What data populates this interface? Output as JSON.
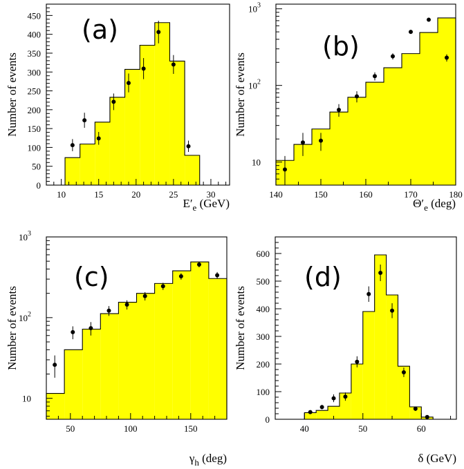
{
  "colors": {
    "fill": "#ffff00",
    "line": "#000000"
  },
  "chart_data": [
    {
      "panel": "(a)",
      "type": "bar",
      "yscale": "linear",
      "xlim": [
        8,
        32.5
      ],
      "ylim": [
        0,
        480
      ],
      "xticks": [
        10,
        15,
        20,
        25,
        30
      ],
      "yticks": [
        0,
        50,
        100,
        150,
        200,
        250,
        300,
        350,
        400,
        450
      ],
      "xlabel": [
        "E",
        "′",
        "e",
        " (GeV)"
      ],
      "ylabel": "Number of events",
      "bins": [
        10.5,
        12.5,
        14.5,
        16.5,
        18.5,
        20.5,
        22.5,
        24.5,
        26.5,
        28.5
      ],
      "histogram": [
        73,
        109,
        167,
        233,
        307,
        371,
        431,
        329,
        79
      ],
      "points": {
        "x": [
          11.5,
          13.1,
          15.0,
          17.0,
          19.0,
          21.0,
          23.0,
          25.0,
          27.0
        ],
        "y": [
          106,
          172,
          124,
          221,
          271,
          309,
          406,
          320,
          103
        ],
        "err": [
          16,
          20,
          17,
          22,
          25,
          28,
          30,
          25,
          15
        ]
      }
    },
    {
      "panel": "(b)",
      "type": "bar",
      "yscale": "log",
      "xlim": [
        140,
        180
      ],
      "ylim": [
        5,
        1150
      ],
      "xticks": [
        140,
        150,
        160,
        170,
        180
      ],
      "yticks": [
        10,
        100,
        1000
      ],
      "ytick_labels": [
        [
          "10",
          ""
        ],
        [
          "10",
          "2"
        ],
        [
          "10",
          "3"
        ]
      ],
      "xlabel": [
        "Θ",
        "′",
        "e",
        " (deg)"
      ],
      "ylabel": "Number of events",
      "bins": [
        140,
        144,
        148,
        152,
        156,
        160,
        164,
        168,
        172,
        176,
        180
      ],
      "histogram": [
        10.5,
        17,
        27,
        45,
        70,
        110,
        170,
        260,
        490,
        760,
        215
      ],
      "points": {
        "x": [
          142,
          146,
          150,
          154,
          158,
          162,
          166,
          170,
          174,
          178
        ],
        "y": [
          8,
          18,
          19,
          48,
          72,
          132,
          240,
          500,
          720,
          230
        ],
        "err": [
          4,
          6,
          5,
          9,
          12,
          16,
          22,
          30,
          40,
          25
        ]
      }
    },
    {
      "panel": "(c)",
      "type": "bar",
      "yscale": "log",
      "xlim": [
        30,
        180
      ],
      "ylim": [
        5.5,
        1000
      ],
      "xticks": [
        50,
        100,
        150
      ],
      "yticks": [
        10,
        100,
        1000
      ],
      "ytick_labels": [
        [
          "10",
          ""
        ],
        [
          "10",
          "2"
        ],
        [
          "10",
          "3"
        ]
      ],
      "xlabel": [
        "γ",
        "",
        "h",
        " (deg)"
      ],
      "ylabel": "Number of events",
      "bins": [
        30,
        45,
        60,
        75,
        90,
        105,
        120,
        135,
        150,
        165,
        180
      ],
      "histogram": [
        11.5,
        40,
        72,
        112,
        155,
        200,
        265,
        380,
        490,
        305
      ],
      "points": {
        "x": [
          37,
          52,
          67,
          82,
          97,
          112,
          127,
          142,
          157,
          172
        ],
        "y": [
          26,
          66,
          74,
          122,
          145,
          185,
          245,
          325,
          455,
          335
        ],
        "err": [
          8,
          12,
          14,
          17,
          19,
          22,
          25,
          30,
          35,
          32
        ]
      }
    },
    {
      "panel": "(d)",
      "type": "bar",
      "yscale": "linear",
      "xlim": [
        35,
        66
      ],
      "ylim": [
        0,
        660
      ],
      "xticks": [
        40,
        50,
        60
      ],
      "yticks": [
        0,
        100,
        200,
        300,
        400,
        500,
        600
      ],
      "xlabel": [
        "δ",
        "",
        "",
        " (GeV)"
      ],
      "ylabel": "Number of events",
      "bins": [
        40,
        42,
        44,
        46,
        48,
        50,
        52,
        54,
        56,
        58,
        60,
        62
      ],
      "histogram": [
        24,
        32,
        47,
        95,
        200,
        390,
        595,
        450,
        192,
        45,
        8
      ],
      "points": {
        "x": [
          41,
          43,
          45,
          47,
          49,
          51,
          53,
          55,
          57,
          59,
          61
        ],
        "y": [
          26,
          44,
          76,
          82,
          208,
          453,
          530,
          393,
          170,
          38,
          8
        ],
        "err": [
          6,
          8,
          14,
          15,
          20,
          28,
          30,
          27,
          17,
          8,
          4
        ]
      }
    }
  ]
}
